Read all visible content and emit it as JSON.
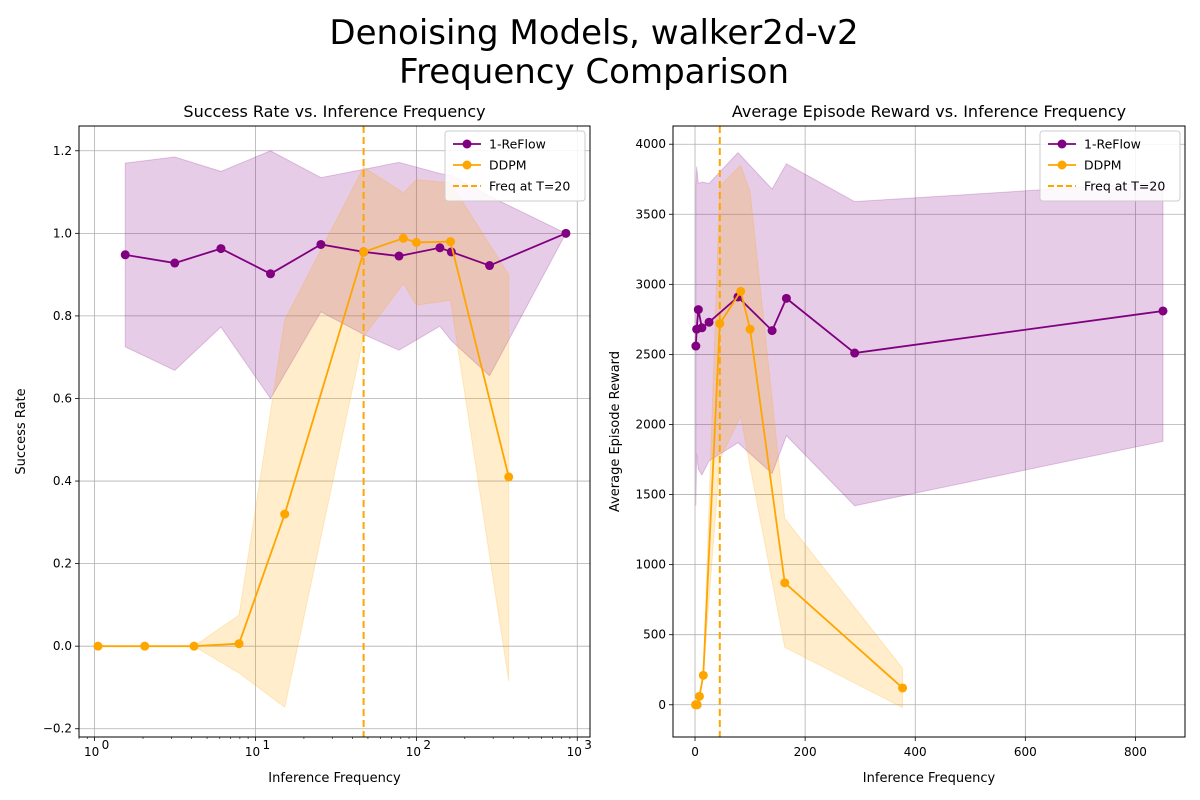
{
  "figure": {
    "title_line1": "Denoising Models, walker2d-v2",
    "title_line2": "Frequency Comparison"
  },
  "colors": {
    "reflow": "#800080",
    "ddpm": "#ffa500",
    "grid": "#b0b0b0"
  },
  "chart_data": [
    {
      "type": "line",
      "title": "Success Rate vs. Inference Frequency",
      "xlabel": "Inference Frequency",
      "ylabel": "Success Rate",
      "xscale": "log",
      "xlim": [
        0.8,
        1200
      ],
      "ylim": [
        -0.22,
        1.26
      ],
      "xticks": [
        1,
        10,
        100,
        1000
      ],
      "xtick_labels": [
        "10",
        "10",
        "10",
        "10"
      ],
      "xtick_exponents": [
        "0",
        "1",
        "2",
        "3"
      ],
      "yticks": [
        -0.2,
        0.0,
        0.2,
        0.4,
        0.6,
        0.8,
        1.0,
        1.2
      ],
      "ytick_labels": [
        "−0.2",
        "0.0",
        "0.2",
        "0.4",
        "0.6",
        "0.8",
        "1.0",
        "1.2"
      ],
      "grid": true,
      "legend_position": "top-right",
      "series": [
        {
          "name": "1-ReFlow",
          "color": "#800080",
          "x": [
            1.55,
            3.15,
            6.1,
            12.4,
            25.5,
            47,
            78,
            140,
            165,
            285,
            850
          ],
          "y": [
            0.948,
            0.928,
            0.963,
            0.902,
            0.973,
            0.955,
            0.945,
            0.965,
            0.955,
            0.922,
            1.0
          ],
          "upper": [
            1.17,
            1.185,
            1.15,
            1.2,
            1.135,
            1.155,
            1.172,
            1.145,
            1.14,
            1.09,
            1.0
          ],
          "lower": [
            0.725,
            0.668,
            0.773,
            0.6,
            0.81,
            0.755,
            0.717,
            0.775,
            0.74,
            0.655,
            1.0
          ]
        },
        {
          "name": "DDPM",
          "color": "#ffa500",
          "x": [
            1.05,
            2.05,
            4.15,
            7.9,
            15.2,
            47,
            83,
            100,
            163,
            375
          ],
          "y": [
            0.0,
            0.0,
            0.0,
            0.006,
            0.32,
            0.955,
            0.988,
            0.978,
            0.98,
            0.41
          ],
          "upper": [
            0.0,
            0.0,
            0.0,
            0.075,
            0.79,
            1.16,
            1.098,
            1.13,
            1.122,
            0.9
          ],
          "lower": [
            0.0,
            0.0,
            0.0,
            -0.065,
            -0.148,
            0.75,
            0.878,
            0.826,
            0.838,
            -0.085
          ]
        }
      ],
      "vline": {
        "name": "Freq at T=20",
        "x": 47,
        "color": "#ffa500"
      }
    },
    {
      "type": "line",
      "title": "Average Episode Reward vs. Inference Frequency",
      "xlabel": "Inference Frequency",
      "ylabel": "Average Episode Reward",
      "xscale": "linear",
      "xlim": [
        -40,
        890
      ],
      "ylim": [
        -230,
        4130
      ],
      "xticks": [
        0,
        200,
        400,
        600,
        800
      ],
      "xtick_labels": [
        "0",
        "200",
        "400",
        "600",
        "800"
      ],
      "yticks": [
        0,
        500,
        1000,
        1500,
        2000,
        2500,
        3000,
        3500,
        4000
      ],
      "ytick_labels": [
        "0",
        "500",
        "1000",
        "1500",
        "2000",
        "2500",
        "3000",
        "3500",
        "4000"
      ],
      "grid": true,
      "legend_position": "top-right",
      "series": [
        {
          "name": "1-ReFlow",
          "color": "#800080",
          "x": [
            1.5,
            3,
            6,
            12.5,
            25.5,
            78,
            140,
            166,
            290,
            850
          ],
          "y": [
            2560,
            2680,
            2820,
            2690,
            2730,
            2910,
            2670,
            2900,
            2510,
            2810
          ],
          "upper": [
            3700,
            3840,
            3720,
            3730,
            3720,
            3940,
            3680,
            3860,
            3590,
            3730
          ],
          "lower": [
            1420,
            1790,
            1680,
            1640,
            1740,
            1870,
            1650,
            1920,
            1420,
            1880
          ]
        },
        {
          "name": "DDPM",
          "color": "#ffa500",
          "x": [
            1,
            2,
            4,
            8,
            15,
            45,
            83,
            100,
            163,
            377
          ],
          "y": [
            0,
            0,
            0,
            60,
            210,
            2720,
            2950,
            2680,
            870,
            120
          ],
          "upper": [
            0,
            0,
            0,
            60,
            210,
            3700,
            3850,
            3660,
            1330,
            260
          ],
          "lower": [
            0,
            0,
            0,
            60,
            210,
            1750,
            2060,
            1700,
            410,
            -20
          ]
        }
      ],
      "vline": {
        "name": "Freq at T=20",
        "x": 45,
        "color": "#ffa500"
      }
    }
  ]
}
